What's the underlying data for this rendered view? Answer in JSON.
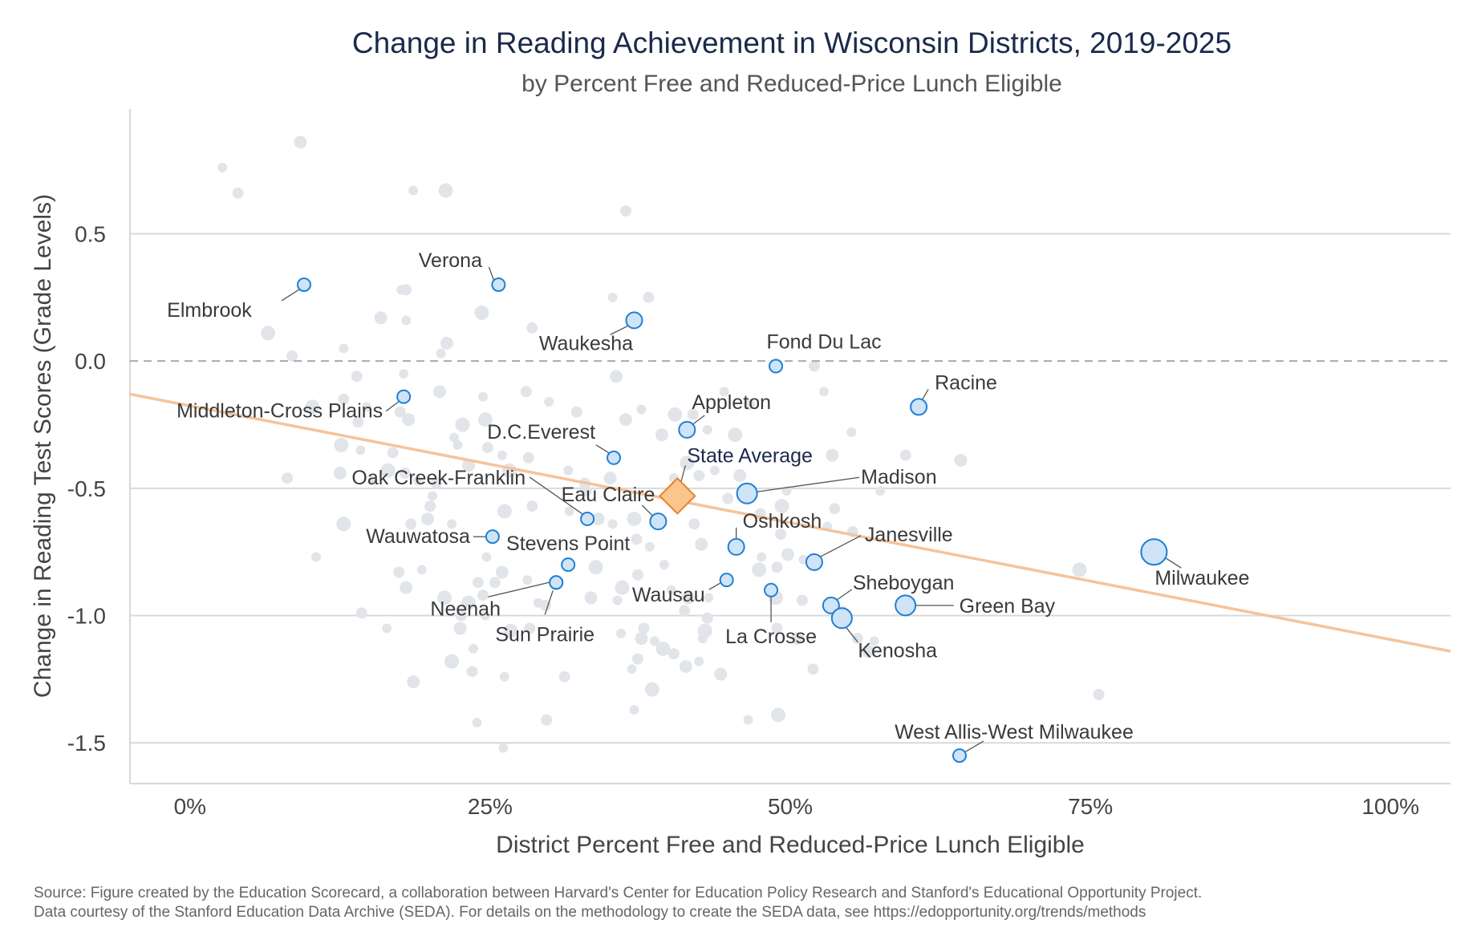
{
  "chart_data": {
    "type": "scatter",
    "title": "Change in Reading Achievement in Wisconsin Districts, 2019-2025",
    "subtitle": "by Percent Free and Reduced-Price Lunch Eligible",
    "xlabel": "District Percent Free and Reduced-Price Lunch Eligible",
    "ylabel": "Change in Reading Test Scores (Grade Levels)",
    "xlim": [
      -0.05,
      1.05
    ],
    "ylim": [
      -1.66,
      0.99
    ],
    "xticks": [
      {
        "value": 0,
        "label": "0%"
      },
      {
        "value": 0.25,
        "label": "25%"
      },
      {
        "value": 0.5,
        "label": "50%"
      },
      {
        "value": 0.75,
        "label": "75%"
      },
      {
        "value": 1.0,
        "label": "100%"
      }
    ],
    "yticks": [
      {
        "value": 0.5,
        "label": "0.5"
      },
      {
        "value": 0.0,
        "label": "0.0"
      },
      {
        "value": -0.5,
        "label": "-0.5"
      },
      {
        "value": -1.0,
        "label": "-1.0"
      },
      {
        "value": -1.5,
        "label": "-1.5"
      }
    ],
    "grid": "horizontal",
    "reference_line": {
      "y": 0.0,
      "style": "dashed"
    },
    "trend_line": {
      "x": [
        -0.05,
        1.05
      ],
      "y": [
        -0.13,
        -1.14
      ],
      "color": "#f5c39b"
    },
    "colors": {
      "background_point": "#e1e5ea",
      "highlight_fill": "#cfe4f6",
      "highlight_stroke": "#1f7fd6",
      "state_fill": "#fbc58f",
      "state_stroke": "#e8832a",
      "grid": "#d9d9d9"
    },
    "highlighted": [
      {
        "name": "Elmbrook",
        "x": 0.095,
        "y": 0.3,
        "size": "small"
      },
      {
        "name": "Verona",
        "x": 0.257,
        "y": 0.3,
        "size": "small"
      },
      {
        "name": "Waukesha",
        "x": 0.37,
        "y": 0.16,
        "size": "medium"
      },
      {
        "name": "Fond Du Lac",
        "x": 0.488,
        "y": -0.02,
        "size": "small"
      },
      {
        "name": "Racine",
        "x": 0.607,
        "y": -0.18,
        "size": "medium"
      },
      {
        "name": "Middleton-Cross Plains",
        "x": 0.178,
        "y": -0.14,
        "size": "small"
      },
      {
        "name": "Appleton",
        "x": 0.414,
        "y": -0.27,
        "size": "medium"
      },
      {
        "name": "D.C.Everest",
        "x": 0.353,
        "y": -0.38,
        "size": "small"
      },
      {
        "name": "Madison",
        "x": 0.464,
        "y": -0.52,
        "size": "large"
      },
      {
        "name": "Oak Creek-Franklin",
        "x": 0.331,
        "y": -0.62,
        "size": "small"
      },
      {
        "name": "Eau Claire",
        "x": 0.39,
        "y": -0.63,
        "size": "medium"
      },
      {
        "name": "Oshkosh",
        "x": 0.455,
        "y": -0.73,
        "size": "medium"
      },
      {
        "name": "Wauwatosa",
        "x": 0.252,
        "y": -0.69,
        "size": "small"
      },
      {
        "name": "Janesville",
        "x": 0.52,
        "y": -0.79,
        "size": "medium"
      },
      {
        "name": "Stevens Point",
        "x": 0.315,
        "y": -0.8,
        "size": "small"
      },
      {
        "name": "Milwaukee",
        "x": 0.803,
        "y": -0.75,
        "size": "xlarge"
      },
      {
        "name": "Neenah",
        "x": 0.305,
        "y": -0.87,
        "size": "small"
      },
      {
        "name": "Wausau",
        "x": 0.447,
        "y": -0.86,
        "size": "small"
      },
      {
        "name": "La Crosse",
        "x": 0.484,
        "y": -0.9,
        "size": "small"
      },
      {
        "name": "Sheboygan",
        "x": 0.534,
        "y": -0.96,
        "size": "medium"
      },
      {
        "name": "Green Bay",
        "x": 0.596,
        "y": -0.96,
        "size": "large"
      },
      {
        "name": "Kenosha",
        "x": 0.543,
        "y": -1.01,
        "size": "large"
      },
      {
        "name": "Sun Prairie",
        "x": "",
        "y": "",
        "size": "small"
      },
      {
        "name": "West Allis-West Milwaukee",
        "x": 0.641,
        "y": -1.55,
        "size": "small"
      }
    ],
    "state_average": {
      "name": "State Average",
      "x": 0.406,
      "y": -0.53
    },
    "background_points": [
      [
        0.027,
        0.76
      ],
      [
        0.04,
        0.66
      ],
      [
        0.092,
        0.86
      ],
      [
        0.186,
        0.67
      ],
      [
        0.213,
        0.67
      ],
      [
        0.363,
        0.59
      ],
      [
        0.176,
        0.28
      ],
      [
        0.18,
        0.28
      ],
      [
        0.159,
        0.17
      ],
      [
        0.18,
        0.16
      ],
      [
        0.243,
        0.19
      ],
      [
        0.285,
        0.13
      ],
      [
        0.352,
        0.25
      ],
      [
        0.382,
        0.25
      ],
      [
        0.214,
        0.07
      ],
      [
        0.209,
        0.03
      ],
      [
        0.065,
        0.11
      ],
      [
        0.085,
        0.02
      ],
      [
        0.128,
        0.05
      ],
      [
        0.139,
        -0.06
      ],
      [
        0.355,
        -0.06
      ],
      [
        0.178,
        -0.05
      ],
      [
        0.102,
        -0.18
      ],
      [
        0.128,
        -0.15
      ],
      [
        0.147,
        -0.18
      ],
      [
        0.175,
        -0.2
      ],
      [
        0.208,
        -0.12
      ],
      [
        0.244,
        -0.14
      ],
      [
        0.246,
        -0.23
      ],
      [
        0.28,
        -0.12
      ],
      [
        0.299,
        -0.16
      ],
      [
        0.322,
        -0.2
      ],
      [
        0.363,
        -0.23
      ],
      [
        0.376,
        -0.19
      ],
      [
        0.404,
        -0.21
      ],
      [
        0.419,
        -0.21
      ],
      [
        0.445,
        -0.12
      ],
      [
        0.466,
        -0.17
      ],
      [
        0.393,
        -0.29
      ],
      [
        0.431,
        -0.27
      ],
      [
        0.454,
        -0.29
      ],
      [
        0.52,
        -0.02
      ],
      [
        0.528,
        -0.12
      ],
      [
        0.596,
        -0.37
      ],
      [
        0.642,
        -0.39
      ],
      [
        0.551,
        -0.28
      ],
      [
        0.126,
        -0.33
      ],
      [
        0.14,
        -0.24
      ],
      [
        0.142,
        -0.35
      ],
      [
        0.169,
        -0.36
      ],
      [
        0.182,
        -0.23
      ],
      [
        0.22,
        -0.3
      ],
      [
        0.227,
        -0.25
      ],
      [
        0.248,
        -0.34
      ],
      [
        0.223,
        -0.33
      ],
      [
        0.081,
        -0.46
      ],
      [
        0.125,
        -0.44
      ],
      [
        0.152,
        -0.47
      ],
      [
        0.165,
        -0.43
      ],
      [
        0.179,
        -0.44
      ],
      [
        0.19,
        -0.47
      ],
      [
        0.205,
        -0.48
      ],
      [
        0.232,
        -0.41
      ],
      [
        0.26,
        -0.37
      ],
      [
        0.266,
        -0.43
      ],
      [
        0.282,
        -0.38
      ],
      [
        0.315,
        -0.43
      ],
      [
        0.329,
        -0.48
      ],
      [
        0.35,
        -0.46
      ],
      [
        0.403,
        -0.46
      ],
      [
        0.414,
        -0.4
      ],
      [
        0.424,
        -0.45
      ],
      [
        0.437,
        -0.43
      ],
      [
        0.448,
        -0.54
      ],
      [
        0.458,
        -0.45
      ],
      [
        0.497,
        -0.51
      ],
      [
        0.493,
        -0.57
      ],
      [
        0.537,
        -0.58
      ],
      [
        0.531,
        -0.65
      ],
      [
        0.552,
        -0.67
      ],
      [
        0.535,
        -0.37
      ],
      [
        0.575,
        -0.51
      ],
      [
        0.128,
        -0.64
      ],
      [
        0.184,
        -0.64
      ],
      [
        0.202,
        -0.53
      ],
      [
        0.2,
        -0.57
      ],
      [
        0.198,
        -0.62
      ],
      [
        0.218,
        -0.64
      ],
      [
        0.262,
        -0.59
      ],
      [
        0.285,
        -0.57
      ],
      [
        0.316,
        -0.59
      ],
      [
        0.33,
        -0.51
      ],
      [
        0.34,
        -0.62
      ],
      [
        0.352,
        -0.64
      ],
      [
        0.37,
        -0.62
      ],
      [
        0.372,
        -0.7
      ],
      [
        0.383,
        -0.73
      ],
      [
        0.42,
        -0.64
      ],
      [
        0.426,
        -0.72
      ],
      [
        0.395,
        -0.8
      ],
      [
        0.338,
        -0.81
      ],
      [
        0.475,
        -0.6
      ],
      [
        0.476,
        -0.77
      ],
      [
        0.492,
        -0.68
      ],
      [
        0.498,
        -0.76
      ],
      [
        0.511,
        -0.78
      ],
      [
        0.474,
        -0.82
      ],
      [
        0.489,
        -0.81
      ],
      [
        0.105,
        -0.77
      ],
      [
        0.174,
        -0.83
      ],
      [
        0.18,
        -0.89
      ],
      [
        0.193,
        -0.82
      ],
      [
        0.212,
        -0.93
      ],
      [
        0.24,
        -0.87
      ],
      [
        0.247,
        -0.77
      ],
      [
        0.254,
        -0.87
      ],
      [
        0.26,
        -0.83
      ],
      [
        0.281,
        -0.86
      ],
      [
        0.232,
        -0.95
      ],
      [
        0.244,
        -0.92
      ],
      [
        0.29,
        -0.95
      ],
      [
        0.296,
        -0.96
      ],
      [
        0.334,
        -0.93
      ],
      [
        0.356,
        -0.94
      ],
      [
        0.36,
        -0.89
      ],
      [
        0.373,
        -0.84
      ],
      [
        0.401,
        -0.9
      ],
      [
        0.412,
        -0.98
      ],
      [
        0.415,
        -0.93
      ],
      [
        0.432,
        -0.93
      ],
      [
        0.488,
        -0.93
      ],
      [
        0.51,
        -0.94
      ],
      [
        0.544,
        -0.98
      ],
      [
        0.556,
        -1.09
      ],
      [
        0.565,
        -1.14
      ],
      [
        0.57,
        -1.1
      ],
      [
        0.741,
        -0.82
      ],
      [
        0.143,
        -0.99
      ],
      [
        0.164,
        -1.05
      ],
      [
        0.226,
        -1.0
      ],
      [
        0.225,
        -1.05
      ],
      [
        0.246,
        -1.0
      ],
      [
        0.267,
        -1.06
      ],
      [
        0.283,
        -1.05
      ],
      [
        0.359,
        -1.07
      ],
      [
        0.378,
        -1.05
      ],
      [
        0.376,
        -1.09
      ],
      [
        0.387,
        -1.1
      ],
      [
        0.429,
        -1.06
      ],
      [
        0.431,
        -1.01
      ],
      [
        0.427,
        -1.09
      ],
      [
        0.489,
        -1.05
      ],
      [
        0.506,
        -1.09
      ],
      [
        0.236,
        -1.13
      ],
      [
        0.394,
        -1.13
      ],
      [
        0.403,
        -1.15
      ],
      [
        0.424,
        -1.18
      ],
      [
        0.373,
        -1.17
      ],
      [
        0.413,
        -1.2
      ],
      [
        0.368,
        -1.21
      ],
      [
        0.218,
        -1.18
      ],
      [
        0.235,
        -1.22
      ],
      [
        0.262,
        -1.24
      ],
      [
        0.312,
        -1.24
      ],
      [
        0.186,
        -1.26
      ],
      [
        0.37,
        -1.37
      ],
      [
        0.385,
        -1.29
      ],
      [
        0.519,
        -1.21
      ],
      [
        0.239,
        -1.42
      ],
      [
        0.297,
        -1.41
      ],
      [
        0.442,
        -1.23
      ],
      [
        0.465,
        -1.41
      ],
      [
        0.49,
        -1.39
      ],
      [
        0.757,
        -1.31
      ],
      [
        0.261,
        -1.52
      ]
    ],
    "source": [
      "Source: Figure created by the Education Scorecard, a collaboration between Harvard's Center for Education Policy Research and Stanford's Educational Opportunity Project.",
      "Data courtesy of the Stanford Education Data Archive (SEDA). For details on the methodology to create the SEDA data, see https://edopportunity.org/trends/methods"
    ]
  }
}
